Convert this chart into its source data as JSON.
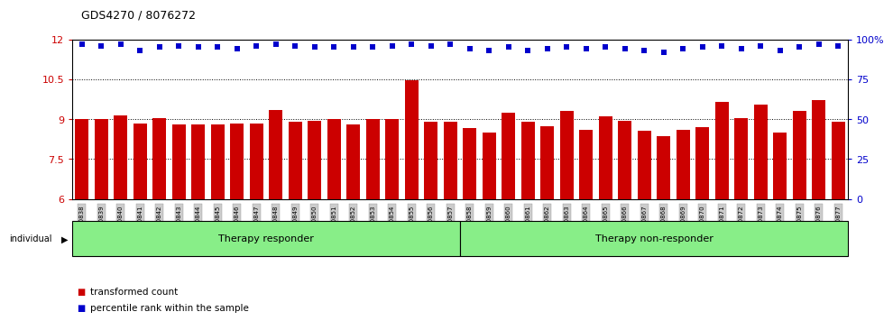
{
  "title": "GDS4270 / 8076272",
  "samples": [
    "GSM530838",
    "GSM530839",
    "GSM530840",
    "GSM530841",
    "GSM530842",
    "GSM530843",
    "GSM530844",
    "GSM530845",
    "GSM530846",
    "GSM530847",
    "GSM530848",
    "GSM530849",
    "GSM530850",
    "GSM530851",
    "GSM530852",
    "GSM530853",
    "GSM530854",
    "GSM530855",
    "GSM530856",
    "GSM530857",
    "GSM530858",
    "GSM530859",
    "GSM530860",
    "GSM530861",
    "GSM530862",
    "GSM530863",
    "GSM530864",
    "GSM530865",
    "GSM530866",
    "GSM530867",
    "GSM530868",
    "GSM530869",
    "GSM530870",
    "GSM530871",
    "GSM530872",
    "GSM530873",
    "GSM530874",
    "GSM530875",
    "GSM530876",
    "GSM530877"
  ],
  "bar_values": [
    9.0,
    9.0,
    9.15,
    8.85,
    9.05,
    8.8,
    8.8,
    8.8,
    8.85,
    8.85,
    9.35,
    8.9,
    8.95,
    9.0,
    8.8,
    9.0,
    9.0,
    10.45,
    8.9,
    8.9,
    8.65,
    8.5,
    9.25,
    8.9,
    8.75,
    9.3,
    8.6,
    9.1,
    8.95,
    8.55,
    8.35,
    8.6,
    8.7,
    9.65,
    9.05,
    9.55,
    8.5,
    9.3,
    9.7,
    8.9
  ],
  "percentile_values": [
    97,
    96,
    97,
    93,
    95,
    96,
    95,
    95,
    94,
    96,
    97,
    96,
    95,
    95,
    95,
    95,
    96,
    97,
    96,
    97,
    94,
    93,
    95,
    93,
    94,
    95,
    94,
    95,
    94,
    93,
    92,
    94,
    95,
    96,
    94,
    96,
    93,
    95,
    97,
    96
  ],
  "group1_label": "Therapy responder",
  "group2_label": "Therapy non-responder",
  "group1_count": 20,
  "group2_count": 20,
  "bar_color": "#cc0000",
  "dot_color": "#0000cc",
  "ylim_left": [
    6,
    12
  ],
  "ylim_right": [
    0,
    100
  ],
  "yticks_left": [
    6,
    7.5,
    9,
    10.5,
    12
  ],
  "yticks_right": [
    0,
    25,
    50,
    75,
    100
  ],
  "individual_label": "individual",
  "legend_bar": "transformed count",
  "legend_dot": "percentile rank within the sample",
  "group_bg_color": "#88ee88",
  "tick_area_color": "#cccccc",
  "figsize": [
    10.0,
    3.54
  ]
}
